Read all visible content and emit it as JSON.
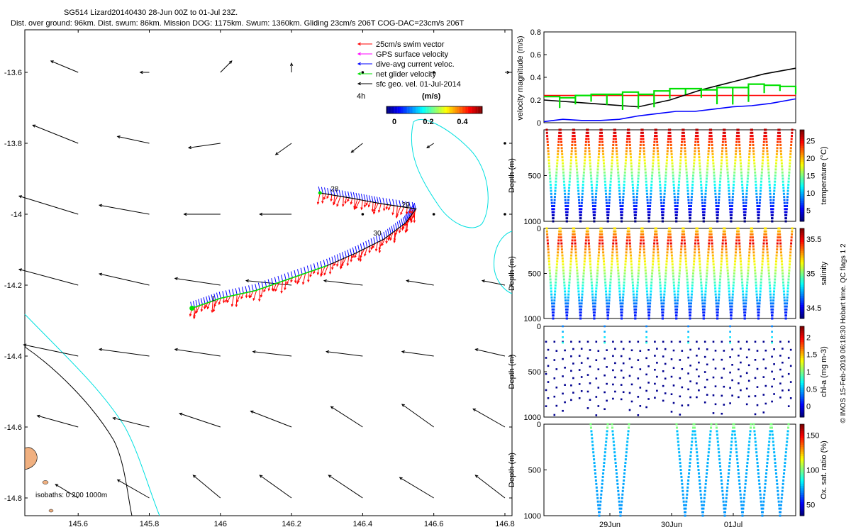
{
  "header": {
    "line1": "SG514 Lizard20140430 28-Jun 00Z to 01-Jul 23Z.",
    "line2": "Dist. over ground: 96km. Dist. swum: 86km. Mission DOG: 1175km. Swum: 1360km. Gliding 23cm/s 206T COG-DAC=23cm/s 206T"
  },
  "colors": {
    "swim": "#ff0000",
    "gps": "#ff00ff",
    "dac": "#0000ff",
    "net": "#00e000",
    "sfc": "#000000",
    "isobath_shallow": "#000000",
    "isobath_deep": "#00e0e0",
    "land": "#f0b080"
  },
  "legend": {
    "items": [
      {
        "label": "25cm/s swim vector",
        "color": "#ff0000"
      },
      {
        "label": "GPS surface velocity",
        "color": "#ff00ff"
      },
      {
        "label": "dive-avg current veloc.",
        "color": "#0000ff"
      },
      {
        "label": "net glider velocity",
        "color": "#00e000"
      },
      {
        "label": "sfc geo. vel. 01-Jul-2014",
        "color": "#000000"
      }
    ],
    "interval": "4h",
    "units": "(m/s)",
    "colorbar_ticks": [
      "0",
      "0.2",
      "0.4"
    ]
  },
  "isobath_label": "isobaths: 0   200  1000m",
  "footer": "© IMOS 15-Feb-2019 06:18:30 Hobart time. QC flags 1  2",
  "chart_data": [
    {
      "type": "scatter",
      "name": "map",
      "xlim": [
        145.45,
        146.82
      ],
      "ylim": [
        -14.85,
        -13.48
      ],
      "xticks": [
        145.6,
        145.8,
        146,
        146.2,
        146.4,
        146.6,
        146.8
      ],
      "xtick_labels": [
        "145.6",
        "145.8",
        "146",
        "146.2",
        "146.4",
        "146.6",
        "146.8"
      ],
      "yticks": [
        -13.6,
        -13.8,
        -14,
        -14.2,
        -14.4,
        -14.6,
        -14.8
      ],
      "ytick_labels": [
        "-13.6",
        "-13.8",
        "-14",
        "-14.2",
        "-14.4",
        "-14.6",
        "-14.8"
      ],
      "track": {
        "lon": [
          145.92,
          146.0,
          146.1,
          146.2,
          146.3,
          146.38,
          146.46,
          146.52,
          146.55,
          146.45,
          146.37,
          146.28
        ],
        "lat": [
          -14.265,
          -14.237,
          -14.215,
          -14.18,
          -14.145,
          -14.11,
          -14.07,
          -14.025,
          -13.985,
          -13.97,
          -13.955,
          -13.94
        ]
      },
      "day_labels": [
        {
          "text": "28",
          "lon": 146.31,
          "lat": -13.935
        },
        {
          "text": "29",
          "lon": 146.51,
          "lat": -13.98
        },
        {
          "text": "30",
          "lon": 146.43,
          "lat": -14.06
        },
        {
          "text": "1",
          "lon": 145.975,
          "lat": -14.245
        }
      ],
      "sfc_vectors": {
        "lons": [
          145.6,
          145.8,
          146.0,
          146.2,
          146.4,
          146.6,
          146.8
        ],
        "lats": [
          -13.6,
          -13.8,
          -14.0,
          -14.2,
          -14.4,
          -14.6,
          -14.8
        ],
        "u_ms": [
          [
            -0.12,
            -0.04,
            0.05,
            0.0,
            0.0,
            0.0,
            0.02
          ],
          [
            -0.2,
            -0.14,
            -0.14,
            -0.07,
            -0.05,
            -0.03,
            0.0
          ],
          [
            -0.26,
            -0.22,
            -0.16,
            -0.14,
            0.0,
            0.0,
            0.0
          ],
          [
            -0.26,
            -0.22,
            -0.2,
            -0.2,
            -0.17,
            -0.12,
            -0.1
          ],
          [
            -0.24,
            -0.22,
            -0.2,
            -0.17,
            -0.16,
            -0.14,
            -0.13
          ],
          [
            -0.18,
            -0.16,
            -0.18,
            -0.18,
            -0.14,
            -0.14,
            -0.14
          ],
          [
            -0.1,
            -0.14,
            -0.12,
            -0.14,
            -0.15,
            -0.15,
            -0.13
          ]
        ],
        "v_ms": [
          [
            0.05,
            0.0,
            0.05,
            0.04,
            0.0,
            0.0,
            0.0
          ],
          [
            0.08,
            0.03,
            -0.02,
            -0.05,
            -0.04,
            -0.02,
            0.0
          ],
          [
            0.08,
            0.04,
            0.0,
            0.0,
            0.0,
            0.0,
            0.0
          ],
          [
            0.07,
            0.05,
            0.03,
            0.02,
            0.02,
            0.02,
            0.02
          ],
          [
            0.05,
            0.03,
            0.03,
            0.02,
            0.02,
            0.02,
            0.03
          ],
          [
            0.05,
            0.04,
            0.06,
            0.07,
            0.09,
            0.1,
            0.08
          ],
          [
            0.06,
            0.08,
            0.1,
            0.1,
            0.1,
            0.09,
            0.1
          ]
        ]
      }
    },
    {
      "type": "line",
      "name": "velocity",
      "ylabel": "velocity magnitude (m/s)",
      "ylim": [
        0,
        0.8
      ],
      "yticks": [
        0,
        0.2,
        0.4,
        0.6,
        0.8
      ],
      "ytick_labels": [
        "0",
        "0.2",
        "0.4",
        "0.6",
        "0.8"
      ],
      "xlim": [
        0,
        4
      ],
      "series": [
        {
          "name": "swim",
          "color": "#ff0000",
          "x": [
            0,
            4
          ],
          "y": [
            0.24,
            0.24
          ]
        },
        {
          "name": "sfc geo",
          "color": "#000000",
          "x": [
            0,
            0.5,
            1.0,
            1.5,
            2.0,
            2.5,
            3.0,
            3.5,
            4.0
          ],
          "y": [
            0.2,
            0.18,
            0.16,
            0.14,
            0.2,
            0.29,
            0.36,
            0.43,
            0.48
          ]
        },
        {
          "name": "dac",
          "color": "#0000ff",
          "x": [
            0,
            0.3,
            0.6,
            0.9,
            1.2,
            1.5,
            1.8,
            2.1,
            2.4,
            2.7,
            3.0,
            3.3,
            3.6,
            3.9,
            4.0
          ],
          "y": [
            0.01,
            0.03,
            0.02,
            0.02,
            0.03,
            0.06,
            0.08,
            0.1,
            0.1,
            0.12,
            0.14,
            0.15,
            0.17,
            0.2,
            0.21
          ]
        },
        {
          "name": "net",
          "color": "#00e000",
          "x": [
            0,
            0.25,
            0.5,
            0.75,
            1.0,
            1.25,
            1.5,
            1.75,
            2.0,
            2.25,
            2.5,
            2.75,
            3.0,
            3.25,
            3.5,
            3.75,
            4.0
          ],
          "y": [
            0.23,
            0.22,
            0.24,
            0.25,
            0.25,
            0.27,
            0.25,
            0.28,
            0.3,
            0.3,
            0.29,
            0.31,
            0.31,
            0.34,
            0.33,
            0.32,
            0.31
          ]
        }
      ]
    },
    {
      "type": "scatter",
      "name": "temperature",
      "ylabel": "Depth (m)",
      "cbar_label": "temperature (°C)",
      "clim": [
        3,
        29
      ],
      "cticks": [
        "25",
        "20",
        "15",
        "10",
        "5"
      ],
      "yticks": [
        0,
        500,
        1000
      ],
      "ytick_labels": [
        "",
        "500",
        "1000"
      ]
    },
    {
      "type": "scatter",
      "name": "salinity",
      "ylabel": "Depth (m)",
      "cbar_label": "salinity",
      "clim": [
        34.3,
        35.9
      ],
      "cticks": [
        "35.5",
        "35",
        "34.5"
      ],
      "yticks": [
        0,
        500,
        1000
      ],
      "ytick_labels": [
        "0",
        "500",
        "1000"
      ]
    },
    {
      "type": "scatter",
      "name": "chl",
      "ylabel": "Depth (m)",
      "cbar_label": "chl-a (mg m-3)",
      "clim": [
        0,
        2
      ],
      "cticks": [
        "2",
        "1.5",
        "1",
        "0.5",
        "0"
      ],
      "yticks": [
        0,
        500,
        1000
      ],
      "ytick_labels": [
        "0",
        "500",
        "1000"
      ]
    },
    {
      "type": "scatter",
      "name": "oxygen",
      "ylabel": "Depth (m)",
      "cbar_label": "Ox. sat. ratio (%)",
      "clim": [
        20,
        170
      ],
      "cticks": [
        "150",
        "100",
        "50"
      ],
      "yticks": [
        0,
        500,
        1000
      ],
      "ytick_labels": [
        "0",
        "500",
        "1000"
      ],
      "xtick_labels": [
        "29Jun",
        "30Jun",
        "01Jul"
      ]
    }
  ]
}
